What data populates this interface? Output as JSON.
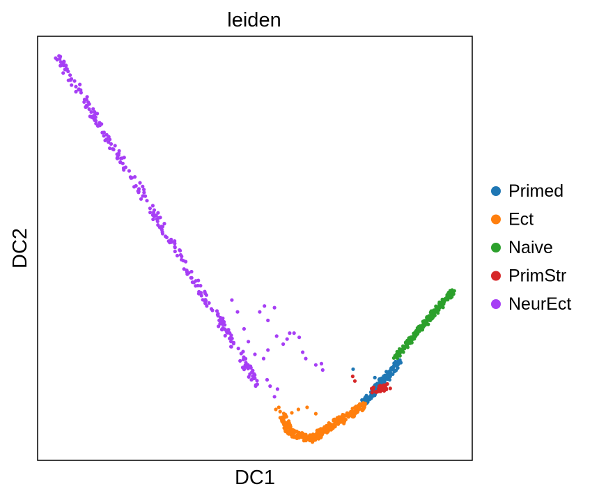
{
  "chart_data": {
    "type": "scatter",
    "title": "leiden",
    "xlabel": "DC1",
    "ylabel": "DC2",
    "xlim": [
      0,
      100
    ],
    "ylim": [
      0,
      100
    ],
    "ticks": "none",
    "grid": false,
    "legend_position": "right",
    "series": [
      {
        "name": "Primed",
        "color": "#1f77b4",
        "segments": [
          [
            75,
            13.5,
            83.5,
            23.5
          ]
        ],
        "n": 150,
        "spread": 0.7,
        "seed": 11,
        "points": [
          [
            72.6,
            21.5
          ],
          [
            77.6,
            19.5
          ],
          [
            81,
            19
          ]
        ]
      },
      {
        "name": "Ect",
        "color": "#ff7f0e",
        "segments": [
          [
            58,
            6.5,
            63,
            5
          ],
          [
            63,
            5,
            75,
            13
          ],
          [
            58,
            6.5,
            56.5,
            10.5
          ]
        ],
        "n": 320,
        "spread": 0.8,
        "seed": 23,
        "points": [
          [
            55.5,
            12.5
          ],
          [
            55.8,
            11.5
          ],
          [
            54.8,
            12
          ],
          [
            57,
            10.8
          ],
          [
            60,
            12
          ],
          [
            58.5,
            11.2
          ],
          [
            62,
            12.5
          ],
          [
            64,
            11
          ]
        ]
      },
      {
        "name": "Naive",
        "color": "#2ca02c",
        "segments": [
          [
            82,
            24,
            95.5,
            39.8
          ]
        ],
        "n": 240,
        "spread": 0.55,
        "seed": 37,
        "points": []
      },
      {
        "name": "PrimStr",
        "color": "#d62728",
        "segments": [
          [
            77,
            16.5,
            80.5,
            17.5
          ]
        ],
        "n": 40,
        "spread": 0.8,
        "seed": 41,
        "points": [
          [
            72.5,
            19.8
          ],
          [
            73,
            18.7
          ]
        ]
      },
      {
        "name": "NeurEct",
        "color": "#a63ef5",
        "segments": [
          [
            4.5,
            95.5,
            51,
            17.5
          ]
        ],
        "n": 260,
        "spread": 0.8,
        "seed": 53,
        "points": [
          [
            44.7,
            37.8
          ],
          [
            46,
            35
          ],
          [
            47.5,
            31
          ],
          [
            48.5,
            28
          ],
          [
            50,
            25
          ],
          [
            52,
            24
          ],
          [
            53,
            26
          ],
          [
            52.8,
            19
          ],
          [
            53.5,
            17.5
          ],
          [
            54.5,
            15
          ],
          [
            55.2,
            16.8
          ],
          [
            48,
            22
          ],
          [
            61,
            25.5
          ],
          [
            61.7,
            24
          ],
          [
            64,
            22.5
          ],
          [
            65.3,
            22.8
          ],
          [
            65.6,
            21.3
          ],
          [
            57.4,
            28.6
          ],
          [
            58,
            30
          ],
          [
            59,
            30
          ],
          [
            60.2,
            29
          ],
          [
            56.5,
            27.4
          ],
          [
            55,
            29.3
          ],
          [
            53,
            33
          ],
          [
            54.5,
            36
          ],
          [
            52.2,
            36.4
          ],
          [
            51.1,
            35
          ]
        ]
      }
    ]
  }
}
